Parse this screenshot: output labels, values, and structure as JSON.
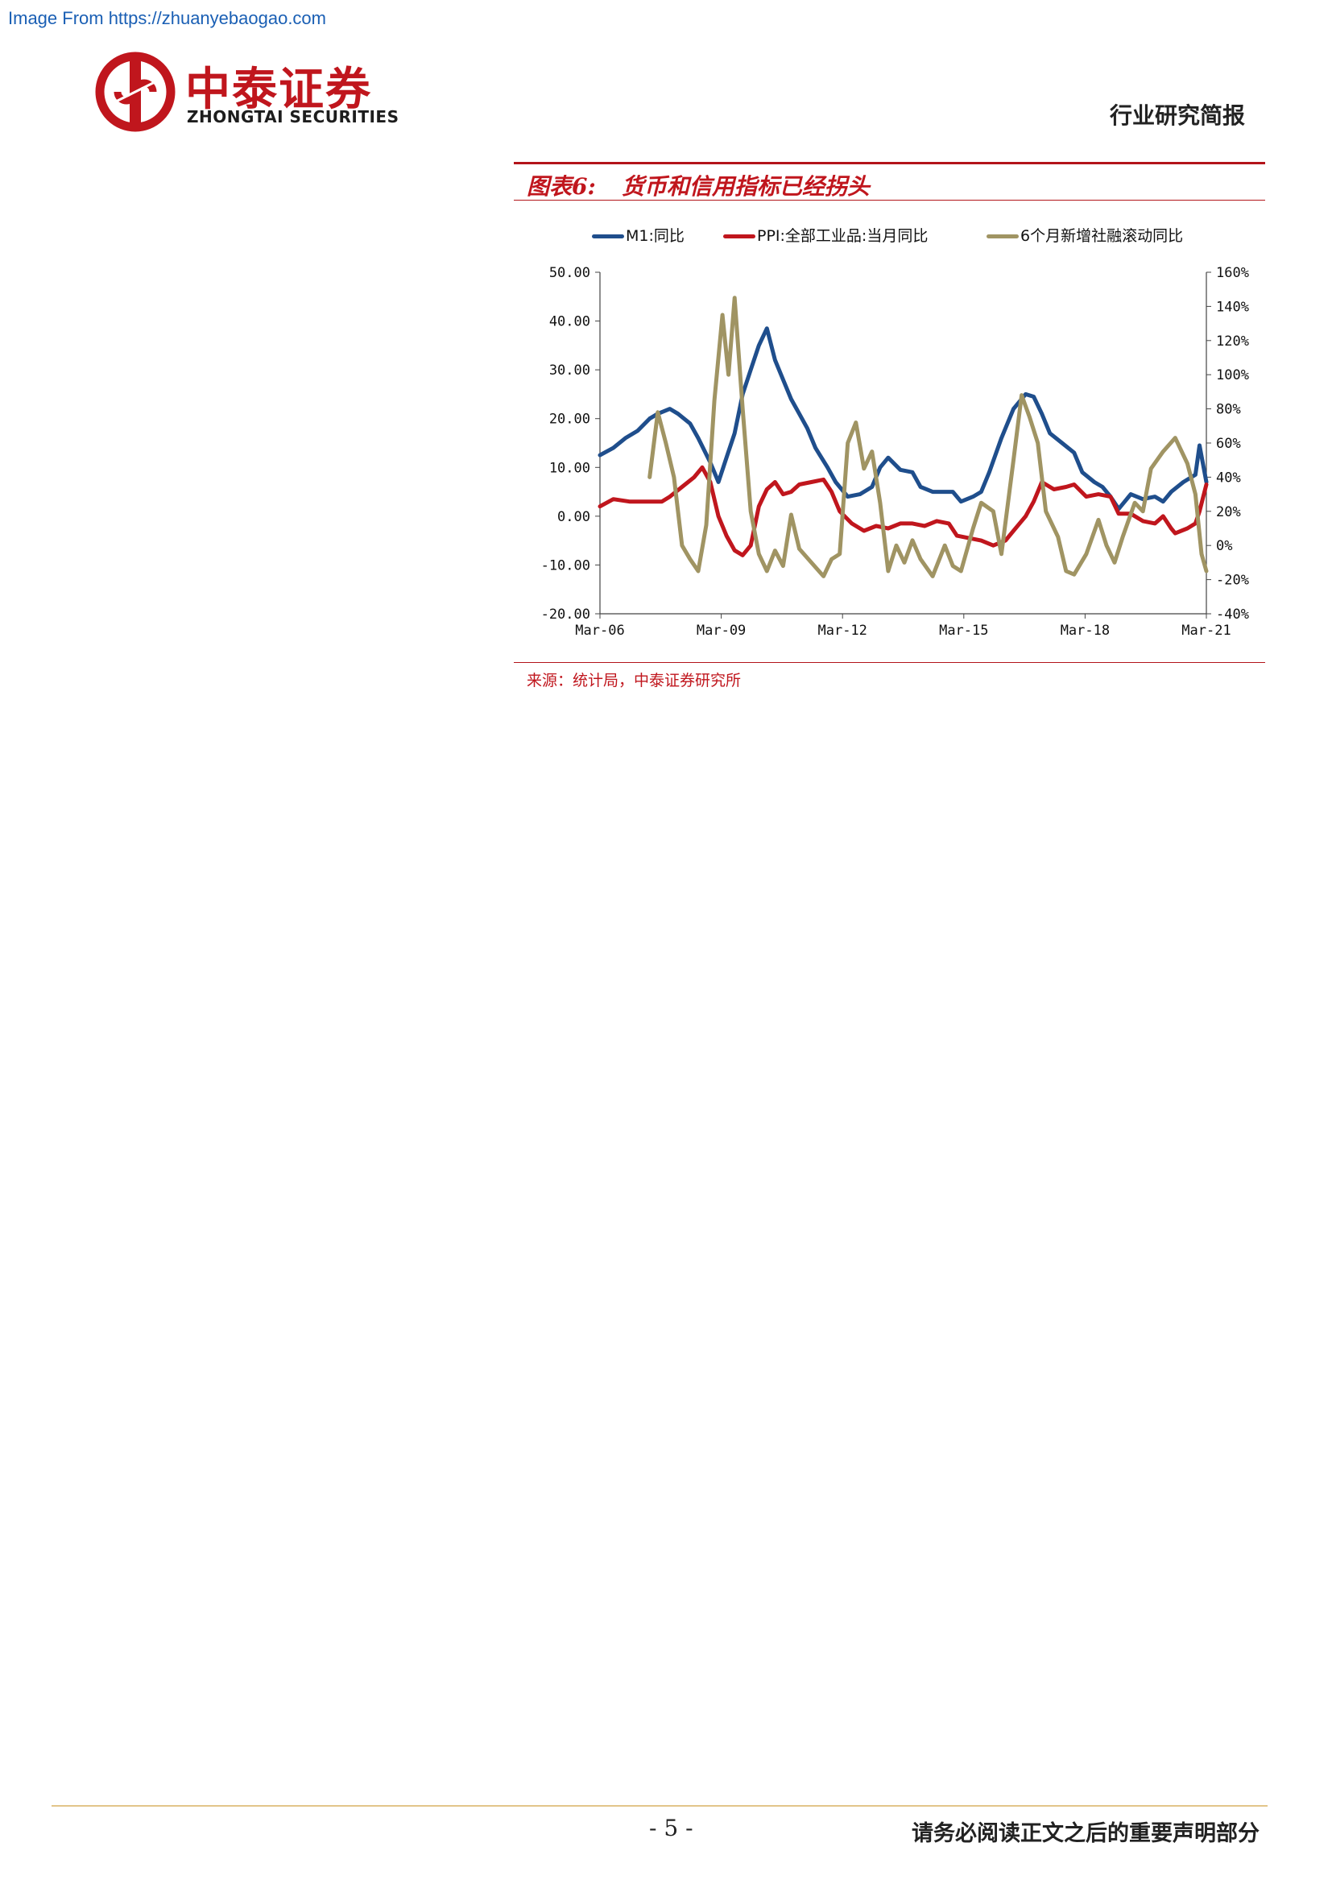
{
  "watermark": "Image From https://zhuanyebaogao.com",
  "brand": {
    "name_cn": "中泰证券",
    "name_en": "ZHONGTAI SECURITIES",
    "color": "#c0161d"
  },
  "header": {
    "doc_type": "行业研究简报"
  },
  "figure": {
    "number": "图表6:",
    "title": "货币和信用指标已经拐头",
    "source": "来源：统计局，中泰证券研究所"
  },
  "chart_data": {
    "type": "line",
    "legend_position": "top",
    "grid": false,
    "x_tick_labels": [
      "Mar-06",
      "Mar-09",
      "Mar-12",
      "Mar-15",
      "Mar-18",
      "Mar-21"
    ],
    "y_left": {
      "ticks": [
        "50.00",
        "40.00",
        "30.00",
        "20.00",
        "10.00",
        "0.00",
        "-10.00",
        "-20.00"
      ],
      "range": [
        -20,
        50
      ]
    },
    "y_right": {
      "ticks": [
        "160%",
        "140%",
        "120%",
        "100%",
        "80%",
        "60%",
        "40%",
        "20%",
        "0%",
        "-20%",
        "-40%"
      ],
      "range": [
        -40,
        160
      ]
    },
    "series": [
      {
        "name": "M1:同比",
        "axis": "left",
        "color": "#1f4e8c",
        "points": [
          [
            2006.17,
            12.5
          ],
          [
            2006.5,
            14
          ],
          [
            2006.8,
            16
          ],
          [
            2007.1,
            17.5
          ],
          [
            2007.4,
            20
          ],
          [
            2007.6,
            21
          ],
          [
            2007.9,
            22
          ],
          [
            2008.1,
            21
          ],
          [
            2008.4,
            19
          ],
          [
            2008.6,
            16
          ],
          [
            2008.9,
            11
          ],
          [
            2009.1,
            7
          ],
          [
            2009.3,
            12
          ],
          [
            2009.5,
            17
          ],
          [
            2009.7,
            25
          ],
          [
            2009.9,
            30
          ],
          [
            2010.1,
            35
          ],
          [
            2010.3,
            38.5
          ],
          [
            2010.5,
            32
          ],
          [
            2010.7,
            28
          ],
          [
            2010.9,
            24
          ],
          [
            2011.1,
            21
          ],
          [
            2011.3,
            18
          ],
          [
            2011.5,
            14
          ],
          [
            2011.8,
            10
          ],
          [
            2012.0,
            7
          ],
          [
            2012.3,
            4
          ],
          [
            2012.6,
            4.5
          ],
          [
            2012.9,
            6
          ],
          [
            2013.1,
            10
          ],
          [
            2013.3,
            12
          ],
          [
            2013.6,
            9.5
          ],
          [
            2013.9,
            9
          ],
          [
            2014.1,
            6
          ],
          [
            2014.4,
            5
          ],
          [
            2014.7,
            5
          ],
          [
            2014.9,
            5
          ],
          [
            2015.1,
            3
          ],
          [
            2015.4,
            4
          ],
          [
            2015.6,
            5
          ],
          [
            2015.8,
            9
          ],
          [
            2016.1,
            16
          ],
          [
            2016.4,
            22
          ],
          [
            2016.7,
            25
          ],
          [
            2016.9,
            24.5
          ],
          [
            2017.1,
            21
          ],
          [
            2017.3,
            17
          ],
          [
            2017.6,
            15
          ],
          [
            2017.9,
            13
          ],
          [
            2018.1,
            9
          ],
          [
            2018.4,
            7
          ],
          [
            2018.6,
            6
          ],
          [
            2018.8,
            4
          ],
          [
            2019.0,
            1.5
          ],
          [
            2019.3,
            4.5
          ],
          [
            2019.6,
            3.5
          ],
          [
            2019.9,
            4
          ],
          [
            2020.1,
            3
          ],
          [
            2020.3,
            5
          ],
          [
            2020.6,
            7
          ],
          [
            2020.9,
            8.5
          ],
          [
            2021.0,
            14.5
          ],
          [
            2021.17,
            7
          ]
        ]
      },
      {
        "name": "PPI:全部工业品:当月同比",
        "axis": "left",
        "color": "#c0161d",
        "points": [
          [
            2006.17,
            2
          ],
          [
            2006.5,
            3.5
          ],
          [
            2006.9,
            3
          ],
          [
            2007.3,
            3
          ],
          [
            2007.7,
            3
          ],
          [
            2007.9,
            4
          ],
          [
            2008.2,
            6
          ],
          [
            2008.5,
            8
          ],
          [
            2008.7,
            10
          ],
          [
            2008.9,
            7
          ],
          [
            2009.1,
            0
          ],
          [
            2009.3,
            -4
          ],
          [
            2009.5,
            -7
          ],
          [
            2009.7,
            -8
          ],
          [
            2009.9,
            -6
          ],
          [
            2010.1,
            2
          ],
          [
            2010.3,
            5.5
          ],
          [
            2010.5,
            7
          ],
          [
            2010.7,
            4.5
          ],
          [
            2010.9,
            5
          ],
          [
            2011.1,
            6.5
          ],
          [
            2011.4,
            7
          ],
          [
            2011.7,
            7.5
          ],
          [
            2011.9,
            5
          ],
          [
            2012.1,
            1
          ],
          [
            2012.4,
            -1.5
          ],
          [
            2012.7,
            -3
          ],
          [
            2013.0,
            -2
          ],
          [
            2013.3,
            -2.5
          ],
          [
            2013.6,
            -1.5
          ],
          [
            2013.9,
            -1.5
          ],
          [
            2014.2,
            -2
          ],
          [
            2014.5,
            -1
          ],
          [
            2014.8,
            -1.5
          ],
          [
            2015.0,
            -4
          ],
          [
            2015.3,
            -4.5
          ],
          [
            2015.6,
            -5
          ],
          [
            2015.9,
            -6
          ],
          [
            2016.2,
            -5
          ],
          [
            2016.4,
            -3
          ],
          [
            2016.7,
            0
          ],
          [
            2016.9,
            3
          ],
          [
            2017.1,
            7
          ],
          [
            2017.4,
            5.5
          ],
          [
            2017.7,
            6
          ],
          [
            2017.9,
            6.5
          ],
          [
            2018.2,
            4
          ],
          [
            2018.5,
            4.5
          ],
          [
            2018.8,
            4
          ],
          [
            2019.0,
            0.5
          ],
          [
            2019.3,
            0.5
          ],
          [
            2019.6,
            -1
          ],
          [
            2019.9,
            -1.5
          ],
          [
            2020.1,
            0
          ],
          [
            2020.3,
            -2.5
          ],
          [
            2020.4,
            -3.5
          ],
          [
            2020.7,
            -2.5
          ],
          [
            2020.9,
            -1.5
          ],
          [
            2021.0,
            1
          ],
          [
            2021.17,
            6.5
          ]
        ]
      },
      {
        "name": "6个月新增社融滚动同比",
        "axis": "right",
        "color": "#a09463",
        "points": [
          [
            2007.4,
            40
          ],
          [
            2007.6,
            78
          ],
          [
            2007.8,
            60
          ],
          [
            2008.0,
            40
          ],
          [
            2008.2,
            0
          ],
          [
            2008.4,
            -8
          ],
          [
            2008.6,
            -15
          ],
          [
            2008.8,
            12
          ],
          [
            2009.0,
            85
          ],
          [
            2009.2,
            135
          ],
          [
            2009.35,
            100
          ],
          [
            2009.5,
            145
          ],
          [
            2009.7,
            80
          ],
          [
            2009.9,
            20
          ],
          [
            2010.1,
            -5
          ],
          [
            2010.3,
            -15
          ],
          [
            2010.5,
            -3
          ],
          [
            2010.7,
            -12
          ],
          [
            2010.9,
            18
          ],
          [
            2011.1,
            -2
          ],
          [
            2011.4,
            -10
          ],
          [
            2011.7,
            -18
          ],
          [
            2011.9,
            -8
          ],
          [
            2012.1,
            -5
          ],
          [
            2012.3,
            60
          ],
          [
            2012.5,
            72
          ],
          [
            2012.7,
            45
          ],
          [
            2012.9,
            55
          ],
          [
            2013.1,
            25
          ],
          [
            2013.3,
            -15
          ],
          [
            2013.5,
            0
          ],
          [
            2013.7,
            -10
          ],
          [
            2013.9,
            3
          ],
          [
            2014.1,
            -8
          ],
          [
            2014.4,
            -18
          ],
          [
            2014.7,
            0
          ],
          [
            2014.9,
            -12
          ],
          [
            2015.1,
            -15
          ],
          [
            2015.4,
            10
          ],
          [
            2015.6,
            25
          ],
          [
            2015.9,
            20
          ],
          [
            2016.1,
            -5
          ],
          [
            2016.4,
            50
          ],
          [
            2016.6,
            88
          ],
          [
            2016.8,
            75
          ],
          [
            2017.0,
            60
          ],
          [
            2017.2,
            20
          ],
          [
            2017.5,
            5
          ],
          [
            2017.7,
            -15
          ],
          [
            2017.9,
            -17
          ],
          [
            2018.2,
            -5
          ],
          [
            2018.5,
            15
          ],
          [
            2018.7,
            0
          ],
          [
            2018.9,
            -10
          ],
          [
            2019.1,
            5
          ],
          [
            2019.4,
            25
          ],
          [
            2019.6,
            20
          ],
          [
            2019.8,
            45
          ],
          [
            2020.1,
            55
          ],
          [
            2020.4,
            63
          ],
          [
            2020.7,
            48
          ],
          [
            2020.9,
            30
          ],
          [
            2021.05,
            -5
          ],
          [
            2021.17,
            -15
          ]
        ]
      }
    ]
  },
  "footer": {
    "page": "- 5 -",
    "disclaimer": "请务必阅读正文之后的重要声明部分"
  }
}
